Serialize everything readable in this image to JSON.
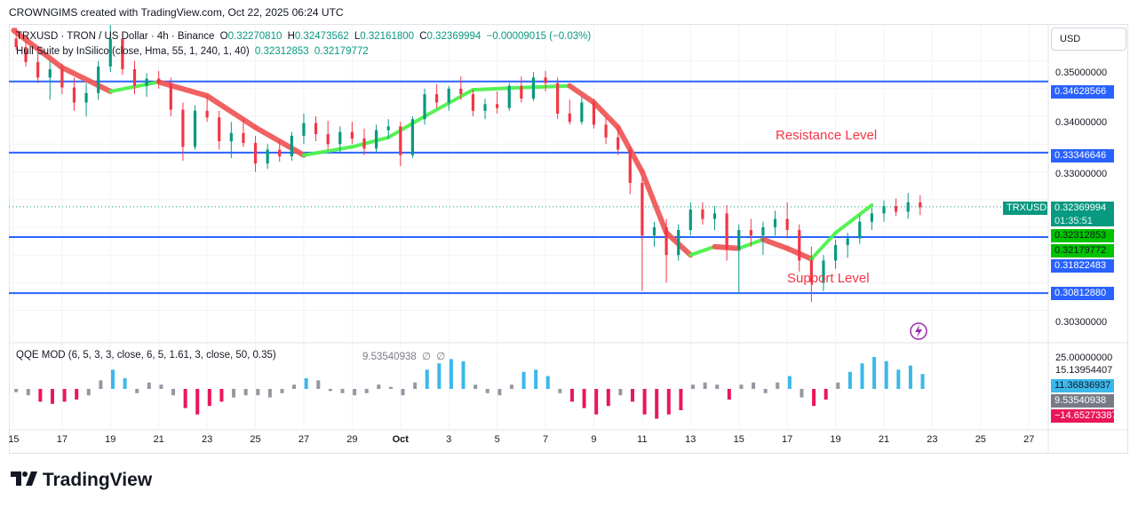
{
  "caption": "CROWNGIMS created with TradingView.com, Oct 22, 2025 06:24 UTC",
  "legend": {
    "symbol": "TRXUSD · TRON / US Dollar · 4h · Binance",
    "o_label": "O",
    "o": "0.32270810",
    "h_label": "H",
    "h": "0.32473562",
    "l_label": "L",
    "l": "0.32161800",
    "c_label": "C",
    "c": "0.32369994",
    "change": "−0.00009015 (−0.03%)",
    "indicator": "Hull Suite by InSilico (close, Hma, 55, 1, 240, 1, 40)",
    "ind_v1": "0.32312853",
    "ind_v2": "0.32179772"
  },
  "currency": "USD",
  "annotations": {
    "resistance": "Resistance Level",
    "support": "Support Level"
  },
  "oscillator": {
    "label": "QQE MOD (6, 5, 3, 3, close, 6, 5, 1.61, 3, close, 50, 0.35)",
    "value": "9.53540938",
    "null_1": "∅",
    "null_2": "∅"
  },
  "price_axis": {
    "ticks": [
      "0.35000000",
      "0.34000000",
      "0.33000000",
      "0.30300000"
    ],
    "tags": {
      "level_1": "0.34628566",
      "level_2": "0.33346646",
      "symbol": "TRXUSD",
      "last": "0.32369994",
      "countdown": "01:35:51",
      "hull_1": "0.32312853",
      "hull_2": "0.32179772",
      "level_3": "0.31822483",
      "level_4": "0.30812880"
    }
  },
  "osc_axis": {
    "ticks": [
      "25.00000000",
      "15.13954407"
    ],
    "tags": {
      "a": "11.36836937",
      "b": "9.53540938",
      "c": "−14.65273387"
    }
  },
  "x_axis": [
    "15",
    "17",
    "19",
    "21",
    "23",
    "25",
    "27",
    "29",
    "Oct",
    "3",
    "5",
    "7",
    "9",
    "11",
    "13",
    "15",
    "17",
    "19",
    "21",
    "23",
    "25",
    "27"
  ],
  "logo": "TradingView",
  "colors": {
    "up": "#089981",
    "down": "#f23645",
    "level": "#2962ff",
    "hull_up": "#4cf24c",
    "hull_down": "#f05a5a",
    "osc_up": "#3bb8eb",
    "osc_down": "#e9175a",
    "osc_neutral": "#9598a1"
  },
  "chart_data": {
    "type": "candlestick",
    "symbol": "TRXUSD",
    "interval": "4h",
    "ylim": [
      0.2995,
      0.3565
    ],
    "horizontal_levels": [
      0.34628566,
      0.33346646,
      0.31822483,
      0.3081288
    ],
    "last_price": 0.32369994,
    "hull": [
      [
        15,
        0.3555
      ],
      [
        17,
        0.3488
      ],
      [
        19,
        0.3445
      ],
      [
        21,
        0.3462
      ],
      [
        23,
        0.3437
      ],
      [
        25,
        0.338
      ],
      [
        27,
        0.333
      ],
      [
        29,
        0.3345
      ],
      [
        30.5,
        0.3362
      ],
      [
        32,
        0.34
      ],
      [
        34,
        0.3448
      ],
      [
        36,
        0.3452
      ],
      [
        38,
        0.3455
      ],
      [
        39,
        0.3425
      ],
      [
        40,
        0.338
      ],
      [
        41,
        0.33
      ],
      [
        42,
        0.319
      ],
      [
        43,
        0.315
      ],
      [
        44,
        0.3165
      ],
      [
        45,
        0.3162
      ],
      [
        46,
        0.3178
      ],
      [
        47,
        0.3162
      ],
      [
        48,
        0.3143
      ],
      [
        49,
        0.319
      ],
      [
        50.5,
        0.324
      ]
    ],
    "candles": [
      [
        15.1,
        0.354,
        0.356,
        0.352,
        0.3525
      ],
      [
        15.5,
        0.3525,
        0.3535,
        0.349,
        0.3498
      ],
      [
        16.0,
        0.3498,
        0.3512,
        0.346,
        0.347
      ],
      [
        16.5,
        0.347,
        0.35,
        0.343,
        0.3485
      ],
      [
        17.0,
        0.3485,
        0.3495,
        0.344,
        0.3452
      ],
      [
        17.5,
        0.3452,
        0.347,
        0.341,
        0.3425
      ],
      [
        18.0,
        0.3425,
        0.346,
        0.34,
        0.3442
      ],
      [
        18.5,
        0.3442,
        0.35,
        0.343,
        0.349
      ],
      [
        19.0,
        0.349,
        0.3565,
        0.348,
        0.354
      ],
      [
        19.5,
        0.354,
        0.3552,
        0.3475,
        0.3485
      ],
      [
        20.0,
        0.3485,
        0.35,
        0.344,
        0.3455
      ],
      [
        20.5,
        0.3455,
        0.3478,
        0.3435,
        0.3468
      ],
      [
        21.0,
        0.3468,
        0.3482,
        0.345,
        0.346
      ],
      [
        21.5,
        0.346,
        0.347,
        0.34,
        0.3412
      ],
      [
        22.0,
        0.3412,
        0.3425,
        0.332,
        0.3345
      ],
      [
        22.5,
        0.3345,
        0.342,
        0.334,
        0.341
      ],
      [
        23.0,
        0.341,
        0.3435,
        0.339,
        0.3398
      ],
      [
        23.5,
        0.3398,
        0.341,
        0.334,
        0.3355
      ],
      [
        24.0,
        0.3355,
        0.339,
        0.3325,
        0.337
      ],
      [
        24.5,
        0.337,
        0.3395,
        0.3345,
        0.3352
      ],
      [
        25.0,
        0.3352,
        0.3365,
        0.33,
        0.3315
      ],
      [
        25.5,
        0.3315,
        0.335,
        0.3305,
        0.334
      ],
      [
        26.0,
        0.334,
        0.3358,
        0.3318,
        0.3328
      ],
      [
        26.5,
        0.3328,
        0.3372,
        0.332,
        0.3365
      ],
      [
        27.0,
        0.3365,
        0.3405,
        0.335,
        0.3388
      ],
      [
        27.5,
        0.3388,
        0.34,
        0.3355,
        0.3368
      ],
      [
        28.0,
        0.3368,
        0.3392,
        0.334,
        0.335
      ],
      [
        28.5,
        0.335,
        0.3382,
        0.3335,
        0.3372
      ],
      [
        29.0,
        0.3372,
        0.339,
        0.335,
        0.336
      ],
      [
        29.5,
        0.336,
        0.3378,
        0.333,
        0.3342
      ],
      [
        30.0,
        0.3342,
        0.3385,
        0.3335,
        0.3375
      ],
      [
        30.5,
        0.3375,
        0.3395,
        0.336,
        0.3382
      ],
      [
        31.0,
        0.3382,
        0.339,
        0.331,
        0.333
      ],
      [
        31.5,
        0.333,
        0.34,
        0.3325,
        0.3395
      ],
      [
        32.0,
        0.3395,
        0.345,
        0.3385,
        0.344
      ],
      [
        32.5,
        0.344,
        0.3458,
        0.3415,
        0.3425
      ],
      [
        33.0,
        0.3425,
        0.3455,
        0.341,
        0.345
      ],
      [
        33.5,
        0.345,
        0.3472,
        0.343,
        0.344
      ],
      [
        34.0,
        0.344,
        0.3448,
        0.34,
        0.341
      ],
      [
        34.5,
        0.341,
        0.3432,
        0.3395,
        0.3422
      ],
      [
        35.0,
        0.3422,
        0.3445,
        0.3405,
        0.3415
      ],
      [
        35.5,
        0.3415,
        0.346,
        0.341,
        0.3455
      ],
      [
        36.0,
        0.3455,
        0.3472,
        0.3425,
        0.3432
      ],
      [
        36.5,
        0.3432,
        0.348,
        0.3428,
        0.347
      ],
      [
        37.0,
        0.347,
        0.3482,
        0.3445,
        0.346
      ],
      [
        37.5,
        0.346,
        0.347,
        0.3395,
        0.3405
      ],
      [
        38.0,
        0.3405,
        0.343,
        0.3385,
        0.339
      ],
      [
        38.5,
        0.339,
        0.3435,
        0.3385,
        0.3425
      ],
      [
        39.0,
        0.3425,
        0.3432,
        0.3378,
        0.3385
      ],
      [
        39.5,
        0.3385,
        0.3398,
        0.335,
        0.3362
      ],
      [
        40.0,
        0.3362,
        0.338,
        0.333,
        0.334
      ],
      [
        40.5,
        0.334,
        0.3345,
        0.326,
        0.328
      ],
      [
        41.0,
        0.328,
        0.329,
        0.3085,
        0.3185
      ],
      [
        41.5,
        0.3185,
        0.321,
        0.3165,
        0.32
      ],
      [
        42.0,
        0.32,
        0.3215,
        0.31,
        0.315
      ],
      [
        42.5,
        0.315,
        0.3205,
        0.314,
        0.3195
      ],
      [
        43.0,
        0.3195,
        0.3245,
        0.3185,
        0.3232
      ],
      [
        43.5,
        0.3232,
        0.3245,
        0.3205,
        0.3215
      ],
      [
        44.0,
        0.3215,
        0.3238,
        0.3195,
        0.3225
      ],
      [
        44.5,
        0.3225,
        0.324,
        0.314,
        0.316
      ],
      [
        45.0,
        0.316,
        0.3205,
        0.308,
        0.3195
      ],
      [
        45.5,
        0.3195,
        0.3215,
        0.3165,
        0.3185
      ],
      [
        46.0,
        0.3185,
        0.321,
        0.315,
        0.32
      ],
      [
        46.5,
        0.32,
        0.323,
        0.3185,
        0.3215
      ],
      [
        47.0,
        0.3215,
        0.3245,
        0.318,
        0.3195
      ],
      [
        47.5,
        0.3195,
        0.3205,
        0.312,
        0.314
      ],
      [
        48.0,
        0.314,
        0.3165,
        0.3065,
        0.31
      ],
      [
        48.5,
        0.31,
        0.315,
        0.3085,
        0.314
      ],
      [
        49.0,
        0.314,
        0.3178,
        0.3125,
        0.3168
      ],
      [
        49.5,
        0.3168,
        0.319,
        0.3145,
        0.318
      ],
      [
        50.0,
        0.318,
        0.3222,
        0.317,
        0.321
      ],
      [
        50.5,
        0.321,
        0.3235,
        0.3195,
        0.3225
      ],
      [
        51.0,
        0.3225,
        0.3248,
        0.321,
        0.3238
      ],
      [
        51.5,
        0.3238,
        0.3252,
        0.322,
        0.3228
      ],
      [
        52.0,
        0.3228,
        0.3262,
        0.3215,
        0.3245
      ],
      [
        52.5,
        0.3245,
        0.3258,
        0.3222,
        0.3236
      ]
    ],
    "oscillator_histogram": [
      [
        15.1,
        -1.5
      ],
      [
        15.6,
        -3
      ],
      [
        16.1,
        -6
      ],
      [
        16.6,
        -7
      ],
      [
        17.1,
        -6
      ],
      [
        17.6,
        -5
      ],
      [
        18.1,
        -3
      ],
      [
        18.6,
        4
      ],
      [
        19.1,
        9
      ],
      [
        19.6,
        5
      ],
      [
        20.1,
        -2
      ],
      [
        20.6,
        3
      ],
      [
        21.1,
        2
      ],
      [
        21.6,
        -3
      ],
      [
        22.1,
        -9
      ],
      [
        22.6,
        -12
      ],
      [
        23.1,
        -8
      ],
      [
        23.6,
        -6
      ],
      [
        24.1,
        -4
      ],
      [
        24.6,
        -3
      ],
      [
        25.1,
        -3
      ],
      [
        25.6,
        -4
      ],
      [
        26.1,
        -2
      ],
      [
        26.6,
        2
      ],
      [
        27.1,
        5
      ],
      [
        27.6,
        4
      ],
      [
        28.1,
        -1
      ],
      [
        28.6,
        -2
      ],
      [
        29.1,
        -3
      ],
      [
        29.6,
        -2
      ],
      [
        30.1,
        2
      ],
      [
        30.6,
        1
      ],
      [
        31.1,
        -3
      ],
      [
        31.6,
        3
      ],
      [
        32.1,
        9
      ],
      [
        32.6,
        12
      ],
      [
        33.1,
        14
      ],
      [
        33.6,
        13
      ],
      [
        34.1,
        2
      ],
      [
        34.6,
        -2
      ],
      [
        35.1,
        -3
      ],
      [
        35.6,
        2
      ],
      [
        36.1,
        8
      ],
      [
        36.6,
        9
      ],
      [
        37.1,
        6
      ],
      [
        37.6,
        -2
      ],
      [
        38.1,
        -6
      ],
      [
        38.6,
        -9
      ],
      [
        39.1,
        -12
      ],
      [
        39.6,
        -8
      ],
      [
        40.1,
        -3
      ],
      [
        40.6,
        -6
      ],
      [
        41.1,
        -12
      ],
      [
        41.6,
        -14
      ],
      [
        42.1,
        -12
      ],
      [
        42.6,
        -10
      ],
      [
        43.1,
        2
      ],
      [
        43.6,
        3
      ],
      [
        44.1,
        2
      ],
      [
        44.6,
        -5
      ],
      [
        45.1,
        2
      ],
      [
        45.6,
        3
      ],
      [
        46.1,
        -2
      ],
      [
        46.6,
        3
      ],
      [
        47.1,
        6
      ],
      [
        47.6,
        -4
      ],
      [
        48.1,
        -8
      ],
      [
        48.6,
        -5
      ],
      [
        49.1,
        3
      ],
      [
        49.6,
        8
      ],
      [
        50.1,
        12
      ],
      [
        50.6,
        15
      ],
      [
        51.1,
        13
      ],
      [
        51.6,
        9
      ],
      [
        52.1,
        11
      ],
      [
        52.6,
        7
      ]
    ]
  }
}
